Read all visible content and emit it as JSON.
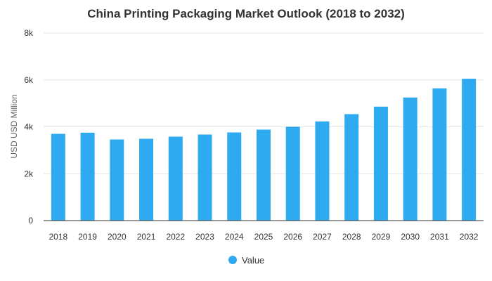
{
  "chart_data": {
    "type": "bar",
    "title": "China Printing Packaging Market Outlook (2018 to 2032)",
    "xlabel": "",
    "ylabel": "USD USD Million",
    "ylim": [
      0,
      8000
    ],
    "yticks": [
      0,
      2000,
      4000,
      6000,
      8000
    ],
    "ytick_labels": [
      "0",
      "2k",
      "4k",
      "6k",
      "8k"
    ],
    "grid": true,
    "legend_position": "bottom",
    "categories": [
      "2018",
      "2019",
      "2020",
      "2021",
      "2022",
      "2023",
      "2024",
      "2025",
      "2026",
      "2027",
      "2028",
      "2029",
      "2030",
      "2031",
      "2032"
    ],
    "series": [
      {
        "name": "Value",
        "color": "#2eaaf0",
        "values": [
          3700,
          3750,
          3460,
          3490,
          3580,
          3670,
          3760,
          3880,
          4000,
          4230,
          4540,
          4860,
          5250,
          5640,
          6050
        ]
      }
    ]
  }
}
